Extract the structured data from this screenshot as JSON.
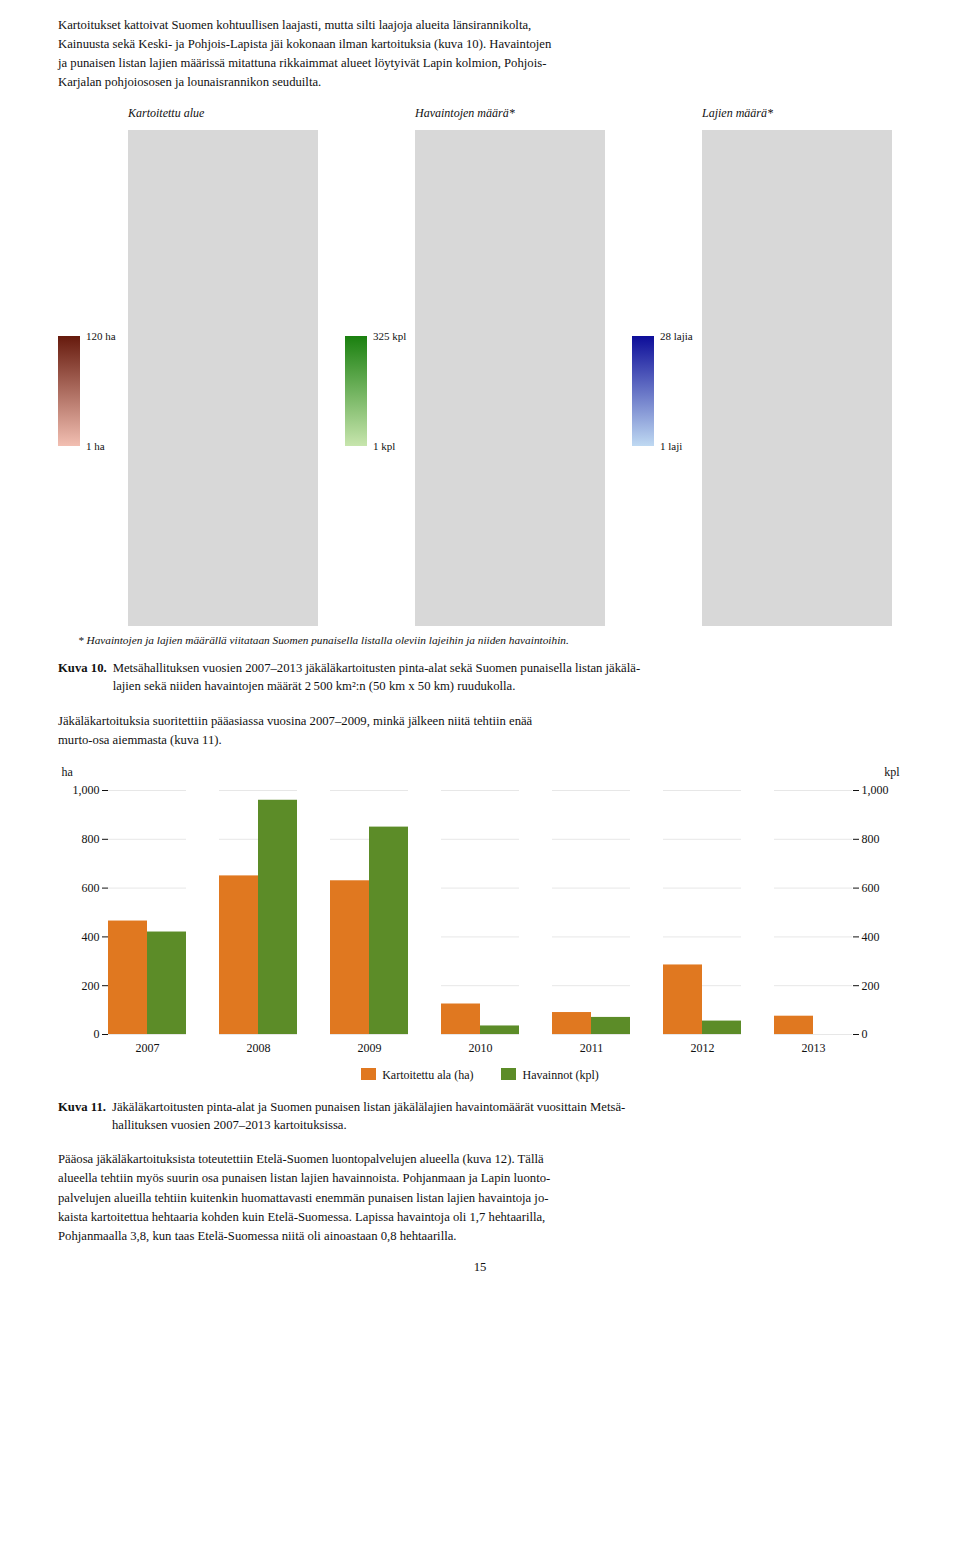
{
  "chart_data": {
    "type": "bar",
    "categories": [
      "2007",
      "2008",
      "2009",
      "2010",
      "2011",
      "2012",
      "2013"
    ],
    "series": [
      {
        "name": "Kartoitettu ala (ha)",
        "color": "#E07820",
        "values": [
          465,
          650,
          630,
          125,
          90,
          285,
          75
        ]
      },
      {
        "name": "Havainnot (kpl)",
        "color": "#5C8C28",
        "values": [
          420,
          960,
          850,
          35,
          70,
          55,
          0
        ]
      }
    ],
    "ylabel": "ha",
    "y2label": "kpl",
    "ylim": [
      0,
      1000
    ],
    "yticks": [
      0,
      200,
      400,
      600,
      800,
      1000
    ],
    "grid": true,
    "legend": "bottom"
  },
  "texts": {
    "para1": "Kartoitukset kattoivat Suomen kohtuullisen laajasti, mutta silti laajoja alueita länsirannikolta,\nKainuusta sekä Keski- ja Pohjois-Lapista jäi kokonaan ilman kartoituksia (kuva 10). Havaintojen\nja punaisen listan lajien määrissä mitattuna rikkaimmat alueet löytyivät Lapin kolmion, Pohjois-\nKarjalan pohjoiososen ja lounaisrannikon seuduilta.",
    "maps": [
      {
        "title": "Kartoitettu alue",
        "label_top": "120 ha",
        "label_bot": "1 ha"
      },
      {
        "title": "Havaintojen määrä*",
        "label_top": "325 kpl",
        "label_bot": "1 kpl"
      },
      {
        "title": "Lajien määrä*",
        "label_top": "28 lajia",
        "label_bot": "1 laji"
      }
    ],
    "footnote": "* Havaintojen ja lajien määrällä viitataan Suomen punaisella listalla oleviin lajeihin ja niiden havaintoihin.",
    "caption10_bold": "Kuva 10.",
    "caption10_text": " Metsähallituksen vuosien 2007–2013 jäkäläkartoitusten pinta-alat sekä Suomen punaisella listan jäkälä-\nlajien sekä niiden havaintojen määrät 2 500 km²:n (50 km x 50 km) ruudukolla.",
    "para2": "Jäkäläkartoituksia suoritettiin pääasiassa vuosina 2007–2009, minkä jälkeen niitä tehtiin enää\nmurto-osa aiemmasta (kuva 11).",
    "caption11_bold": "Kuva 11.",
    "caption11_text": " Jäkäläkartoitusten pinta-alat ja Suomen punaisen listan jäkälälajien havaintomäärät vuosittain Metsä-\nhallituksen vuosien 2007–2013 kartoituksissa.",
    "para3": "Pääosa jäkäläkartoituksista toteutettiin Etelä-Suomen luontopalvelujen alueella (kuva 12). Tällä\nalueella tehtiin myös suurin osa punaisen listan lajien havainnoista. Pohjanmaan ja Lapin luonto-\npalvelujen alueilla tehtiin kuitenkin huomattavasti enemmän punaisen listan lajien havaintoja jo-\nkaista kartoitettua hehtaaria kohden kuin Etelä-Suomessa. Lapissa havaintoja oli 1,7 hehtaarilla,\nPohjanmaalla 3,8, kun taas Etelä-Suomessa niitä oli ainoastaan 0,8 hehtaarilla.",
    "page_num": "15"
  }
}
